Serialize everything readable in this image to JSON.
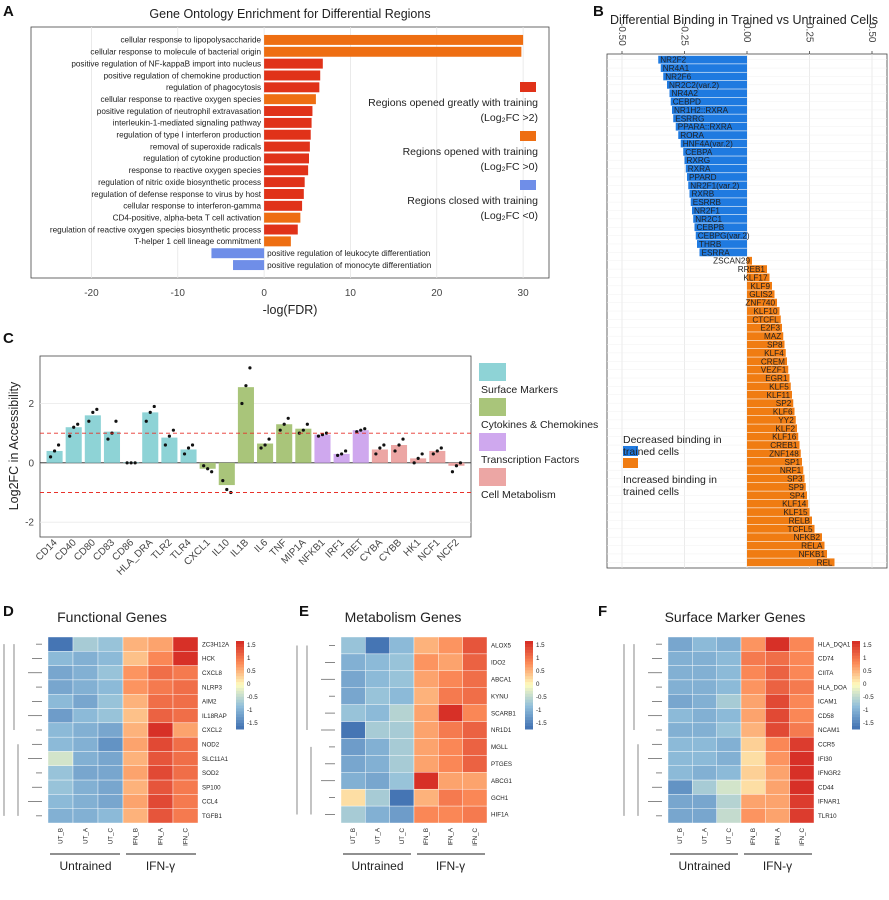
{
  "panels": {
    "A": {
      "label": "A",
      "title": "Gene Ontology Enrichment for Differential Regions",
      "xlabel": "-log(FDR)",
      "xticks": [
        -20,
        -10,
        0,
        10,
        20,
        30
      ],
      "legend": [
        {
          "color": "#e03219",
          "line1": "Regions opened greatly with training",
          "line2": "(Log₂FC >2)"
        },
        {
          "color": "#ee6e12",
          "line1": "Regions opened with training",
          "line2": "(Log₂FC >0)"
        },
        {
          "color": "#6f8ee8",
          "line1": "Regions closed with training",
          "line2": "(Log₂FC <0)"
        }
      ]
    },
    "B": {
      "label": "B",
      "title": "Differential Binding in Trained vs Untrained Cells",
      "xticks": [
        "-0.50",
        "-0.25",
        "0.00",
        "0.25",
        "0.50"
      ],
      "legend": [
        {
          "color": "#1f7ae0",
          "line1": "Decreased binding in",
          "line2": "trained cells"
        },
        {
          "color": "#f07c12",
          "line1": "Increased binding in",
          "line2": "trained cells"
        }
      ]
    },
    "C": {
      "label": "C",
      "ylabel": "Log2FC in Accessibility",
      "yticks": [
        -2,
        0,
        2
      ],
      "legend": [
        {
          "color": "#8ed3d6",
          "text": "Surface Markers"
        },
        {
          "color": "#a9c57a",
          "text": "Cytokines & Chemokines"
        },
        {
          "color": "#cfa8ee",
          "text": "Transcription Factors"
        },
        {
          "color": "#eca6a4",
          "text": "Cell Metabolism"
        }
      ]
    },
    "D": {
      "label": "D",
      "title": "Functional Genes"
    },
    "E": {
      "label": "E",
      "title": "Metabolism Genes"
    },
    "F": {
      "label": "F",
      "title": "Surface Marker Genes"
    }
  },
  "heatmap_common": {
    "columns": [
      "UT_B",
      "UT_A",
      "UT_C",
      "IFN_B",
      "IFN_A",
      "IFN_C"
    ],
    "group_untrained": "Untrained",
    "group_ifn": "IFN-γ",
    "scale_ticks": [
      "1.5",
      "1",
      "0.5",
      "0",
      "-0.5",
      "-1",
      "-1.5"
    ]
  },
  "chart_data": [
    {
      "type": "bar",
      "panel": "A",
      "orientation": "horizontal",
      "xlim": [
        -27,
        33
      ],
      "categories": [
        "cellular response to lipopolysaccharide",
        "cellular response to molecule of bacterial origin",
        "positive regulation of NF-kappaB import into nucleus",
        "positive regulation of chemokine production",
        "regulation of phagocytosis",
        "cellular response to reactive oxygen species",
        "positive regulation of neutrophil extravasation",
        "interleukin-1-mediated signaling pathway",
        "regulation of type I interferon production",
        "removal of superoxide radicals",
        "regulation of cytokine production",
        "response to reactive oxygen species",
        "regulation of nitric oxide biosynthetic process",
        "regulation of defense response to virus by host",
        "cellular response to interferon-gamma",
        "CD4-positive, alpha-beta T cell activation",
        "regulation of reactive oxygen species biosynthetic process",
        "T-helper 1 cell lineage commitment",
        "positive regulation of leukocyte differentiation",
        "positive regulation of monocyte differentiation"
      ],
      "values": [
        30.0,
        29.8,
        6.8,
        6.5,
        6.4,
        6.0,
        5.6,
        5.5,
        5.4,
        5.3,
        5.2,
        5.1,
        4.7,
        4.6,
        4.4,
        4.2,
        3.9,
        3.1,
        -6.1,
        -3.6
      ],
      "groups": [
        "opened",
        "opened",
        "greatly",
        "greatly",
        "greatly",
        "opened",
        "greatly",
        "greatly",
        "greatly",
        "greatly",
        "greatly",
        "greatly",
        "greatly",
        "greatly",
        "greatly",
        "opened",
        "greatly",
        "opened",
        "closed",
        "closed"
      ]
    },
    {
      "type": "bar",
      "panel": "B",
      "orientation": "horizontal",
      "xlim": [
        -0.56,
        0.56
      ],
      "categories": [
        "NR2F2",
        "NR4A1",
        "NR2F6",
        "NR2C2(var.2)",
        "NR4A2",
        "CEBPD",
        "NR1H2::RXRA",
        "ESRRG",
        "PPARA::RXRA",
        "RORA",
        "HNF4A(var.2)",
        "CEBPA",
        "RXRG",
        "RXRA",
        "PPARD",
        "NR2F1(var.2)",
        "RXRB",
        "ESRRB",
        "NR2F1",
        "NR2C1",
        "CEBPB",
        "CEBPG(var.2)",
        "THRB",
        "ESRRA",
        "ZSCAN29",
        "RREB1",
        "KLF17",
        "KLF9",
        "GLIS2",
        "ZNF740",
        "KLF10",
        "CTCFL",
        "E2F3",
        "MAZ",
        "SP8",
        "KLF4",
        "CREM",
        "VEZF1",
        "EGR1",
        "KLF5",
        "KLF11",
        "SP2",
        "KLF6",
        "YY2",
        "KLF2",
        "KLF16",
        "CREB1",
        "ZNF148",
        "SP1",
        "NRF1",
        "SP3",
        "SP9",
        "SP4",
        "KLF14",
        "KLF15",
        "RELB",
        "TCFL5",
        "NFKB2",
        "RELA",
        "NFKB1",
        "REL"
      ],
      "values": [
        -0.355,
        -0.345,
        -0.335,
        -0.32,
        -0.31,
        -0.305,
        -0.3,
        -0.295,
        -0.285,
        -0.275,
        -0.265,
        -0.255,
        -0.25,
        -0.245,
        -0.24,
        -0.235,
        -0.23,
        -0.225,
        -0.22,
        -0.215,
        -0.21,
        -0.205,
        -0.2,
        -0.19,
        0.02,
        0.08,
        0.09,
        0.1,
        0.11,
        0.12,
        0.13,
        0.135,
        0.14,
        0.145,
        0.15,
        0.155,
        0.16,
        0.165,
        0.17,
        0.175,
        0.18,
        0.185,
        0.19,
        0.195,
        0.2,
        0.205,
        0.21,
        0.215,
        0.22,
        0.225,
        0.23,
        0.235,
        0.24,
        0.245,
        0.25,
        0.26,
        0.27,
        0.3,
        0.31,
        0.32,
        0.35
      ]
    },
    {
      "type": "bar",
      "panel": "C",
      "ylim": [
        -2.5,
        3.6
      ],
      "categories": [
        "CD14",
        "CD40",
        "CD80",
        "CD83",
        "CD86",
        "HLA_DRA",
        "TLR2",
        "TLR4",
        "CXCL1",
        "IL10",
        "IL1B",
        "IL6",
        "TNF",
        "MIP1A",
        "NFKB1",
        "IRF1",
        "TBET",
        "CYBA",
        "CYBB",
        "HK1",
        "NCF1",
        "NCF2"
      ],
      "values": [
        0.4,
        1.2,
        1.6,
        1.05,
        0.02,
        1.7,
        0.85,
        0.45,
        -0.2,
        -0.75,
        2.55,
        0.65,
        1.3,
        1.15,
        0.95,
        0.3,
        1.1,
        0.45,
        0.6,
        0.15,
        0.4,
        -0.1
      ],
      "points": [
        [
          0.2,
          0.4,
          0.6
        ],
        [
          0.9,
          1.2,
          1.3
        ],
        [
          1.4,
          1.7,
          1.8
        ],
        [
          0.8,
          1.0,
          1.4
        ],
        [
          0.0,
          0.0,
          0.0
        ],
        [
          1.4,
          1.7,
          1.9
        ],
        [
          0.6,
          0.9,
          1.1
        ],
        [
          0.3,
          0.5,
          0.6
        ],
        [
          -0.1,
          -0.2,
          -0.3
        ],
        [
          -0.6,
          -0.9,
          -1.0
        ],
        [
          2.0,
          2.6,
          3.2
        ],
        [
          0.5,
          0.6,
          0.8
        ],
        [
          1.1,
          1.3,
          1.5
        ],
        [
          1.0,
          1.1,
          1.3
        ],
        [
          0.9,
          0.95,
          1.0
        ],
        [
          0.25,
          0.3,
          0.4
        ],
        [
          1.05,
          1.1,
          1.15
        ],
        [
          0.3,
          0.5,
          0.6
        ],
        [
          0.4,
          0.6,
          0.8
        ],
        [
          0.0,
          0.15,
          0.3
        ],
        [
          0.3,
          0.4,
          0.5
        ],
        [
          -0.3,
          -0.1,
          0.0
        ]
      ],
      "category_group": [
        0,
        0,
        0,
        0,
        0,
        0,
        0,
        0,
        1,
        1,
        1,
        1,
        1,
        1,
        2,
        2,
        2,
        3,
        3,
        3,
        3,
        3
      ],
      "reference_lines": [
        1,
        -1
      ]
    },
    {
      "type": "heatmap",
      "panel": "D",
      "rows": [
        "ZC3H12A",
        "HCK",
        "CXCL8",
        "NLRP3",
        "AIM2",
        "IL18RAP",
        "CXCL2",
        "NOD2",
        "SLC11A1",
        "SOD2",
        "SP100",
        "CCL4",
        "TGFB1"
      ],
      "columns": [
        "UT_B",
        "UT_A",
        "UT_C",
        "IFN_B",
        "IFN_A",
        "IFN_C"
      ],
      "range": [
        -1.5,
        1.5
      ],
      "values": [
        [
          -1.5,
          -0.6,
          -0.7,
          0.5,
          0.6,
          1.6
        ],
        [
          -0.8,
          -0.9,
          -0.8,
          0.4,
          0.8,
          1.6
        ],
        [
          -1.0,
          -0.9,
          -0.7,
          0.7,
          1.0,
          0.9
        ],
        [
          -1.0,
          -0.9,
          -0.8,
          0.7,
          0.9,
          1.0
        ],
        [
          -0.8,
          -1.0,
          -0.7,
          0.5,
          1.0,
          1.0
        ],
        [
          -1.1,
          -0.8,
          -0.7,
          0.4,
          1.1,
          1.0
        ],
        [
          -0.8,
          -0.9,
          -1.0,
          0.5,
          1.6,
          0.6
        ],
        [
          -0.8,
          -0.9,
          -1.2,
          0.6,
          1.3,
          1.0
        ],
        [
          -0.3,
          -0.9,
          -1.0,
          0.5,
          1.2,
          1.0
        ],
        [
          -0.7,
          -1.0,
          -1.0,
          0.6,
          1.3,
          1.0
        ],
        [
          -0.7,
          -0.9,
          -1.0,
          0.5,
          1.2,
          0.9
        ],
        [
          -0.8,
          -0.9,
          -1.0,
          0.6,
          1.3,
          0.9
        ],
        [
          -0.9,
          -0.9,
          -0.8,
          0.5,
          1.2,
          0.9
        ]
      ]
    },
    {
      "type": "heatmap",
      "panel": "E",
      "rows": [
        "ALOX5",
        "IDO2",
        "ABCA1",
        "KYNU",
        "SCARB1",
        "NR1D1",
        "MGLL",
        "PTGES",
        "ABCG1",
        "GCH1",
        "HIF1A"
      ],
      "columns": [
        "UT_B",
        "UT_A",
        "UT_C",
        "IFN_B",
        "IFN_A",
        "IFN_C"
      ],
      "range": [
        -1.5,
        1.5
      ],
      "values": [
        [
          -0.7,
          -1.6,
          -0.8,
          0.5,
          0.7,
          1.2
        ],
        [
          -0.9,
          -0.8,
          -0.7,
          0.7,
          0.6,
          1.1
        ],
        [
          -1.0,
          -0.8,
          -0.7,
          0.6,
          0.8,
          1.0
        ],
        [
          -1.0,
          -0.7,
          -0.8,
          0.5,
          0.9,
          1.0
        ],
        [
          -0.7,
          -0.8,
          -0.5,
          0.6,
          1.7,
          0.8
        ],
        [
          -1.6,
          -0.6,
          -0.6,
          0.6,
          0.9,
          1.1
        ],
        [
          -1.1,
          -0.9,
          -0.6,
          0.6,
          0.8,
          1.1
        ],
        [
          -1.0,
          -0.9,
          -0.6,
          0.6,
          0.8,
          1.1
        ],
        [
          -0.9,
          -1.0,
          -0.7,
          1.6,
          0.6,
          0.6
        ],
        [
          0.2,
          -0.6,
          -1.5,
          0.5,
          0.9,
          0.8
        ],
        [
          -0.6,
          -0.9,
          -1.1,
          0.8,
          0.8,
          0.9
        ]
      ]
    },
    {
      "type": "heatmap",
      "panel": "F",
      "rows": [
        "HLA_DQA1",
        "CD74",
        "CIITA",
        "HLA_DOA",
        "ICAM1",
        "CD58",
        "NCAM1",
        "CCR5",
        "IFI30",
        "IFNGR2",
        "CD44",
        "IFNAR1",
        "TLR10"
      ],
      "columns": [
        "UT_B",
        "UT_A",
        "UT_C",
        "IFN_B",
        "IFN_A",
        "IFN_C"
      ],
      "range": [
        -1.5,
        1.5
      ],
      "values": [
        [
          -1.0,
          -0.8,
          -0.9,
          0.7,
          1.6,
          0.8
        ],
        [
          -0.9,
          -0.9,
          -0.8,
          0.9,
          1.0,
          0.8
        ],
        [
          -0.9,
          -0.9,
          -0.8,
          0.8,
          1.1,
          0.8
        ],
        [
          -0.9,
          -0.9,
          -0.8,
          0.7,
          1.1,
          0.9
        ],
        [
          -1.0,
          -0.9,
          -0.6,
          0.6,
          1.3,
          0.8
        ],
        [
          -0.8,
          -0.9,
          -0.8,
          0.6,
          1.3,
          0.8
        ],
        [
          -0.9,
          -0.9,
          -0.7,
          0.5,
          1.3,
          0.9
        ],
        [
          -0.8,
          -0.8,
          -0.9,
          0.3,
          0.8,
          1.4
        ],
        [
          -0.8,
          -0.8,
          -0.9,
          0.2,
          0.7,
          1.5
        ],
        [
          -0.8,
          -0.9,
          -0.8,
          0.3,
          0.6,
          1.5
        ],
        [
          -1.2,
          -0.6,
          -0.3,
          0.2,
          0.6,
          1.5
        ],
        [
          -1.0,
          -1.0,
          -0.5,
          0.6,
          0.6,
          1.4
        ],
        [
          -1.0,
          -1.0,
          -0.4,
          0.7,
          0.6,
          1.4
        ]
      ]
    }
  ]
}
